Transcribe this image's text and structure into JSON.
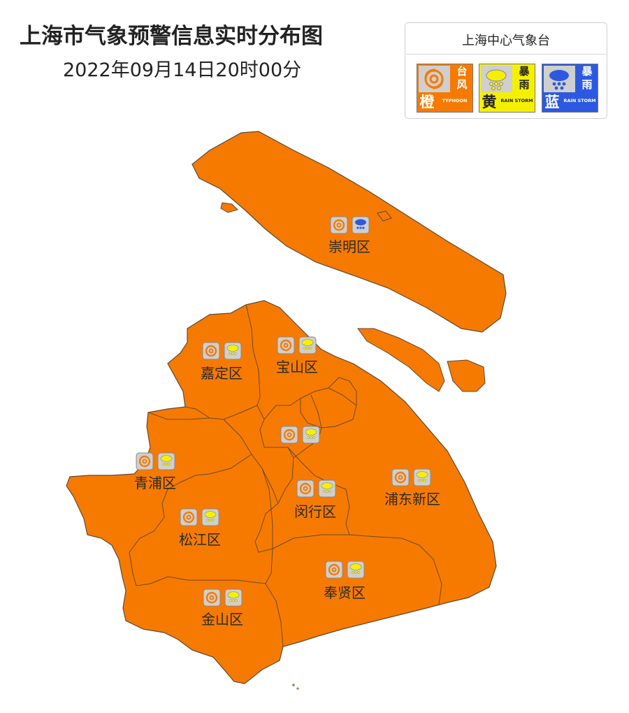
{
  "title": "上海市气象预警信息实时分布图",
  "subtitle": "2022年09月14日20时00分",
  "colors": {
    "map_fill": "#F77A00",
    "typhoon_orange": "#F77A00",
    "rainstorm_yellow": "#F5F000",
    "rainstorm_blue": "#2C59E0"
  },
  "legend": {
    "title": "上海中心气象台",
    "items": [
      {
        "level": "橙",
        "type_line1": "台",
        "type_line2": "风",
        "en": "TYPHOON",
        "icon": "typhoon-icon",
        "color": "#F77A00"
      },
      {
        "level": "黄",
        "type_line1": "暴",
        "type_line2": "雨",
        "en": "RAIN STORM",
        "icon": "rainstorm-icon",
        "color": "#F5F000"
      },
      {
        "level": "蓝",
        "type_line1": "暴",
        "type_line2": "雨",
        "en": "RAIN STORM",
        "icon": "rainstorm-icon",
        "color": "#2C59E0"
      }
    ]
  },
  "districts": [
    {
      "name": "崇明区",
      "warnings": [
        "typhoon-orange",
        "rainstorm-blue"
      ]
    },
    {
      "name": "嘉定区",
      "warnings": [
        "typhoon-orange",
        "rainstorm-yellow"
      ]
    },
    {
      "name": "宝山区",
      "warnings": [
        "typhoon-orange",
        "rainstorm-yellow"
      ]
    },
    {
      "name": "",
      "warnings": [
        "typhoon-orange",
        "rainstorm-yellow"
      ]
    },
    {
      "name": "青浦区",
      "warnings": [
        "typhoon-orange",
        "rainstorm-yellow"
      ]
    },
    {
      "name": "浦东新区",
      "warnings": [
        "typhoon-orange",
        "rainstorm-yellow"
      ]
    },
    {
      "name": "闵行区",
      "warnings": [
        "typhoon-orange",
        "rainstorm-yellow"
      ]
    },
    {
      "name": "松江区",
      "warnings": [
        "typhoon-orange",
        "rainstorm-yellow"
      ]
    },
    {
      "name": "奉贤区",
      "warnings": [
        "typhoon-orange",
        "rainstorm-yellow"
      ]
    },
    {
      "name": "金山区",
      "warnings": [
        "typhoon-orange",
        "rainstorm-yellow"
      ]
    }
  ]
}
